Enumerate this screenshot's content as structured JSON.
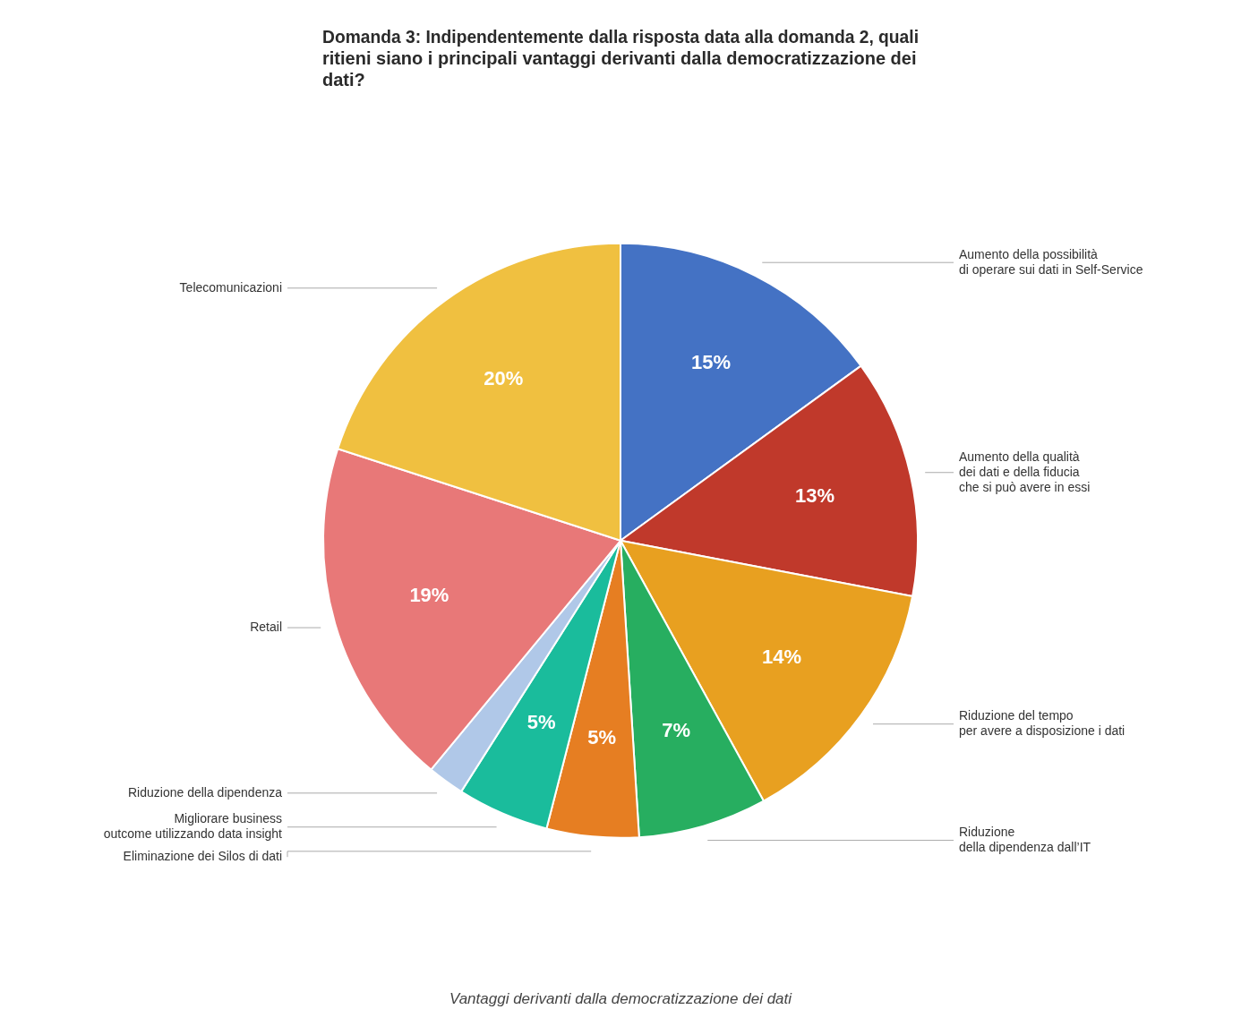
{
  "chart_data": {
    "type": "pie",
    "title": "Domanda 3: Indipendentemente dalla risposta data alla domanda 2, quali\nritieni siano i principali vantaggi derivanti dalla democratizzazione dei\ndati?",
    "subtitle": "Vantaggi derivanti dalla democratizzazione dei dati",
    "categories": [
      "Aumento della possibilità\ndi operare sui dati in Self-Service",
      "Aumento della qualità\ndei dati e della fiducia\nche si può avere in essi",
      "Riduzione del tempo\nper avere a disposizione i dati",
      "Riduzione\ndella dipendenza dall’IT",
      "Eliminazione dei Silos di dati",
      "Migliorare business\noutcome utilizzando data insight",
      "Riduzione della dipendenza",
      "Retail",
      "Telecomunicazioni"
    ],
    "values": [
      15,
      13,
      14,
      7,
      5,
      5,
      2,
      19,
      20
    ],
    "value_labels": [
      "15%",
      "13%",
      "14%",
      "7%",
      "5%",
      "5%",
      null,
      "19%",
      "20%"
    ],
    "colors": [
      "#4472C4",
      "#C0392B",
      "#E8A020",
      "#27AE60",
      "#E67E22",
      "#1ABC9C",
      "#B0C8E8",
      "#E87878",
      "#F0C040"
    ],
    "data_labels": true
  }
}
